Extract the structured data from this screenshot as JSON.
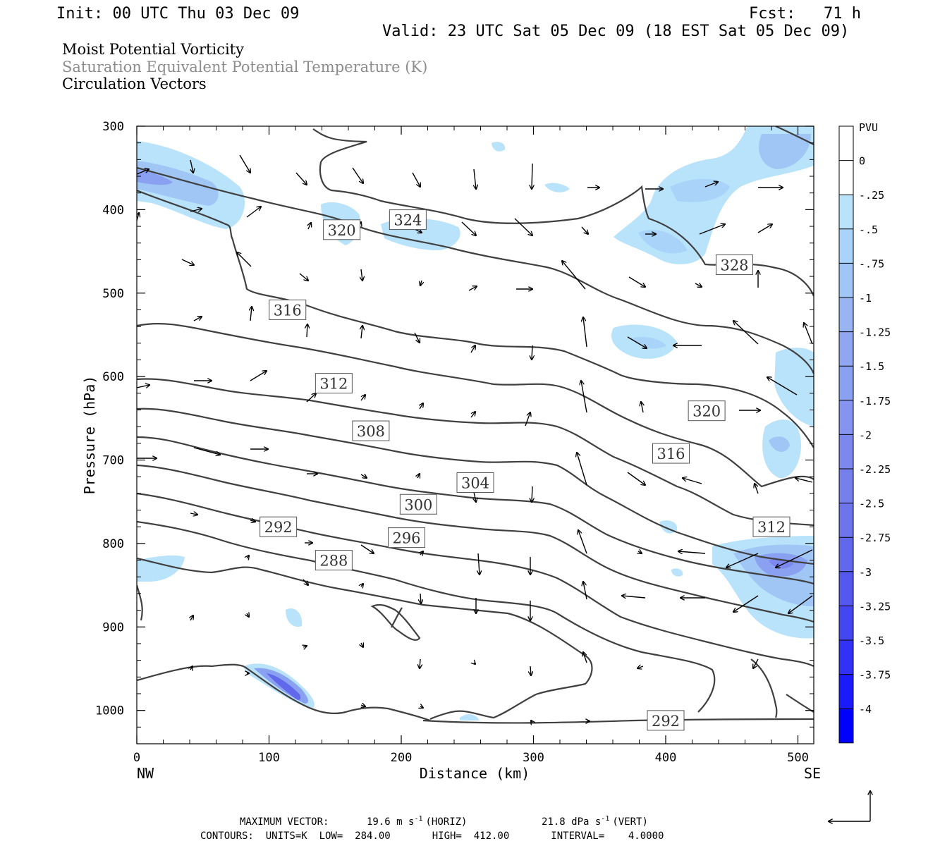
{
  "header": {
    "init": "Init: 00 UTC Thu 03 Dec 09",
    "fcst": "Fcst:   71 h",
    "valid": "Valid: 23 UTC Sat 05 Dec 09 (18 EST Sat 05 Dec 09)",
    "field1": "Moist Potential Vorticity",
    "field2": "Saturation Equivalent Potential Temperature (K)",
    "field3": "Circulation Vectors"
  },
  "colors": {
    "field2": "#8c8c8c",
    "contour": "#404040",
    "shade_1": "#b9e3fb",
    "shade_2": "#a0c6f5",
    "shade_3": "#8aa0f0",
    "shade_4": "#6e74ec"
  },
  "chart_data": {
    "type": "cross-section",
    "xlabel": "Distance (km)",
    "ylabel": "Pressure (hPa)",
    "xlim": [
      0,
      512
    ],
    "ylim": [
      1040,
      300
    ],
    "x_ticks": [
      "0",
      "100",
      "200",
      "300",
      "400",
      "500"
    ],
    "x_tick_values": [
      0,
      100,
      200,
      300,
      400,
      500
    ],
    "y_ticks": [
      "300",
      "400",
      "500",
      "600",
      "700",
      "800",
      "900",
      "1000"
    ],
    "y_tick_values": [
      300,
      400,
      500,
      600,
      700,
      800,
      900,
      1000
    ],
    "x_end_left": "NW",
    "x_end_right": "SE",
    "contour_labels": [
      {
        "text": "320",
        "x": 155,
        "p": 424
      },
      {
        "text": "324",
        "x": 205,
        "p": 412
      },
      {
        "text": "328",
        "x": 452,
        "p": 466
      },
      {
        "text": "316",
        "x": 114,
        "p": 520
      },
      {
        "text": "312",
        "x": 149,
        "p": 608
      },
      {
        "text": "320",
        "x": 431,
        "p": 641
      },
      {
        "text": "308",
        "x": 177,
        "p": 665
      },
      {
        "text": "316",
        "x": 404,
        "p": 692
      },
      {
        "text": "304",
        "x": 256,
        "p": 727
      },
      {
        "text": "300",
        "x": 213,
        "p": 753
      },
      {
        "text": "312",
        "x": 480,
        "p": 780
      },
      {
        "text": "292",
        "x": 107,
        "p": 780
      },
      {
        "text": "296",
        "x": 204,
        "p": 793
      },
      {
        "text": "288",
        "x": 149,
        "p": 820
      },
      {
        "text": "292",
        "x": 400,
        "p": 1012
      }
    ],
    "colorbar": {
      "unit": "PVU",
      "labels": [
        "0",
        "-.25",
        "-.5",
        "-.75",
        "-1",
        "-1.25",
        "-1.5",
        "-1.75",
        "-2",
        "-2.25",
        "-2.5",
        "-2.75",
        "-3",
        "-3.25",
        "-3.5",
        "-3.75",
        "-4"
      ],
      "colors": [
        "#ffffff",
        "#ffffff",
        "#b9e3fb",
        "#a9d3f8",
        "#a0c6f5",
        "#98b4f2",
        "#90a6f1",
        "#8aa0f0",
        "#8494ef",
        "#7c88ee",
        "#7680ed",
        "#6e74ec",
        "#6268ec",
        "#5458ef",
        "#4446f2",
        "#3232f6",
        "#1a1afb",
        "#0000ff"
      ]
    },
    "reference_vector": {
      "horiz": "19.6 m s-1",
      "vert": "21.8 dPa s-1"
    }
  },
  "footer": {
    "max_vector_label": "MAXIMUM VECTOR:",
    "horiz_value": "19.6 m s",
    "horiz_sup": "-1",
    "horiz_tag": "(HORIZ)",
    "vert_value": "21.8 dPa s",
    "vert_sup": "-1",
    "vert_tag": "(VERT)",
    "contours": "CONTOURS:  UNITS=K  LOW=  284.00       HIGH=  412.00       INTERVAL=    4.0000"
  }
}
